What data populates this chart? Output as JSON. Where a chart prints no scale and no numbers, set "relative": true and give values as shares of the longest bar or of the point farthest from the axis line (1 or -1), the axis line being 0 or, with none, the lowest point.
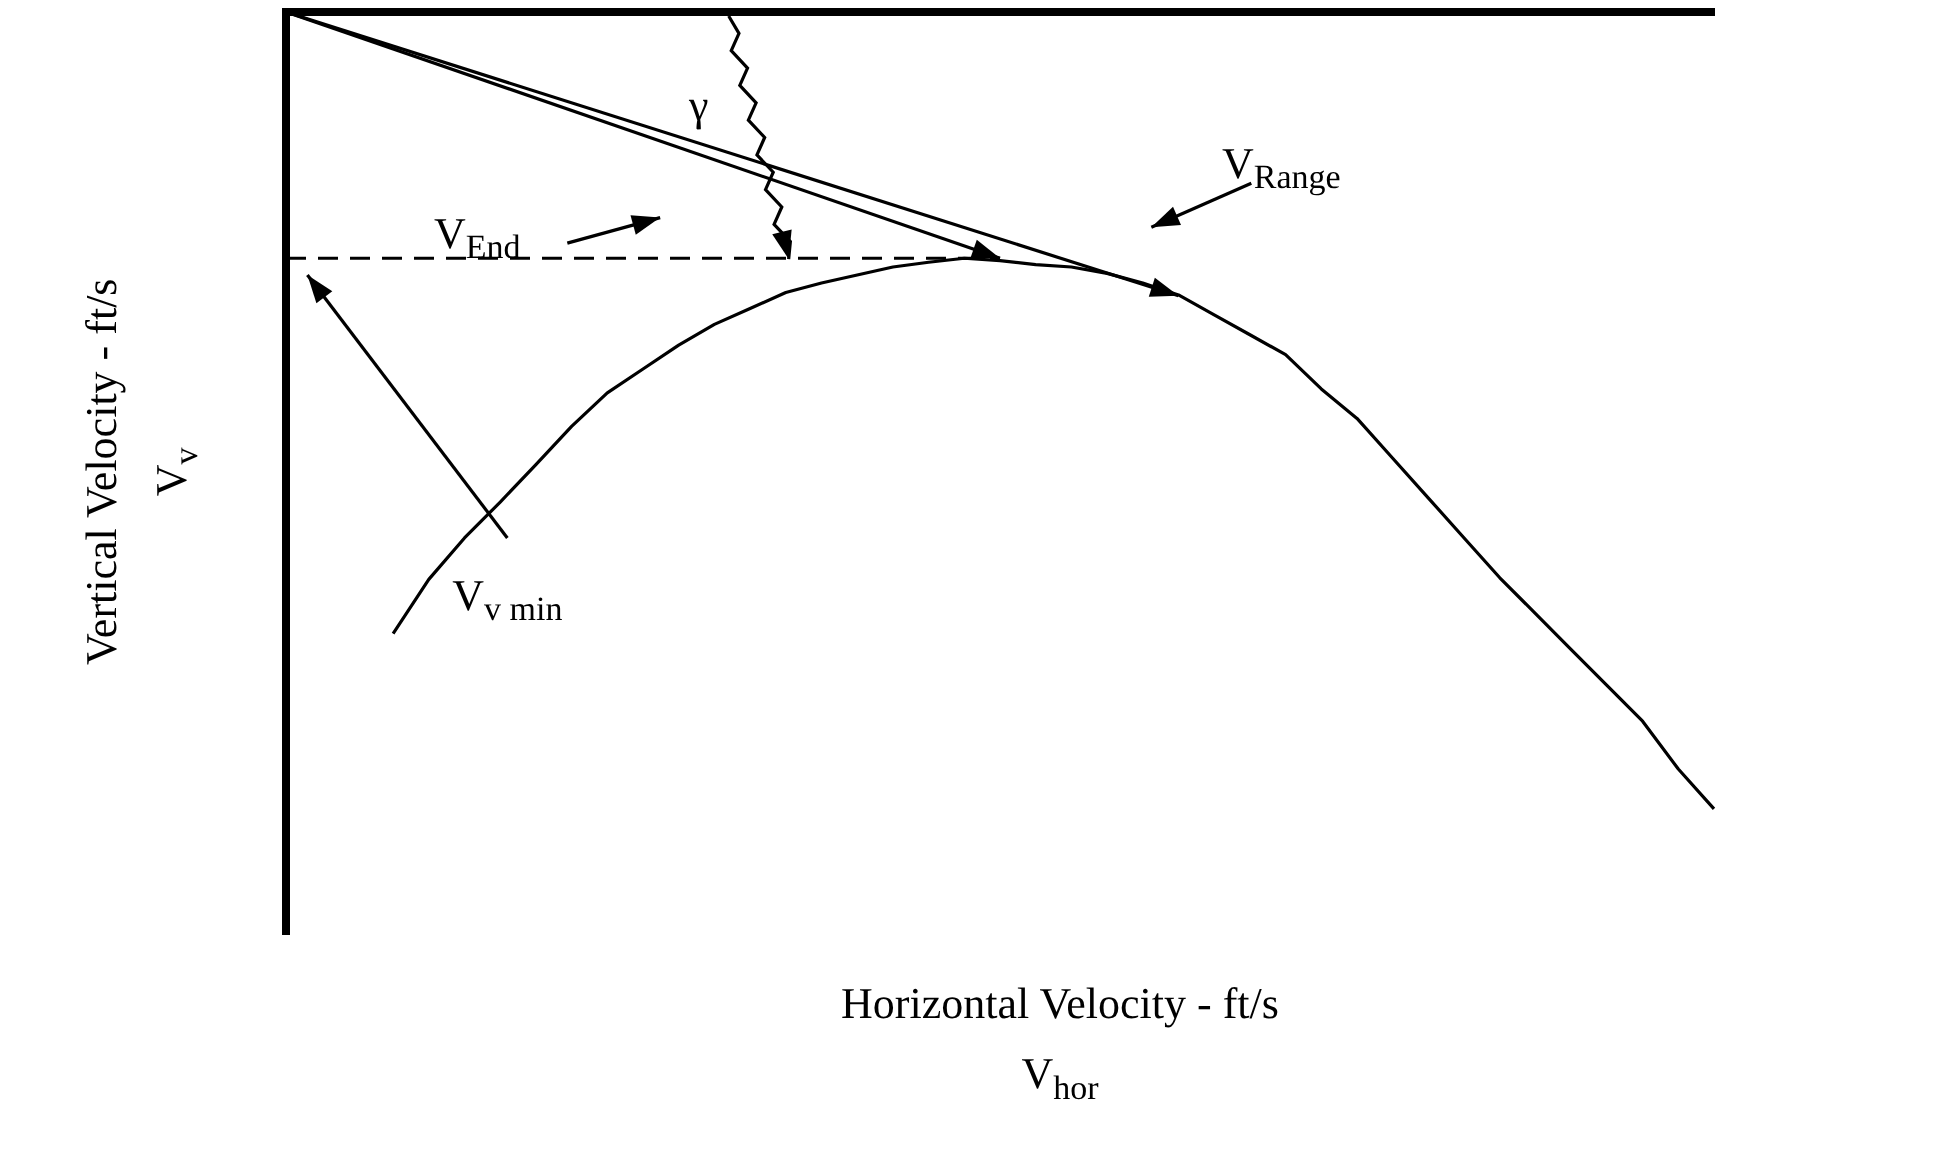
{
  "chart_data": {
    "type": "line",
    "relative": true,
    "legend": false,
    "marker": "none",
    "xlabel": "Horizontal Velocity - ft/s\nV$_{hor}$",
    "ylabel": "Vertical Velocity - ft/s\nV$_{v}$",
    "categories": [
      null,
      null,
      null,
      null,
      null,
      null,
      null,
      null,
      null,
      null,
      null,
      null,
      null,
      null,
      null,
      null,
      null,
      null,
      null,
      null,
      null,
      null,
      null,
      null,
      null,
      null,
      null,
      null,
      null,
      null,
      null,
      null,
      null,
      null,
      null,
      null,
      null,
      null,
      null,
      null,
      null
    ],
    "series": [
      {
        "color": "#000000",
        "line_style": "solid",
        "values": [
          null,
          null,
          null,
          -0.78,
          -0.712,
          -0.66,
          -0.615,
          -0.568,
          -0.52,
          -0.478,
          -0.448,
          -0.418,
          -0.392,
          -0.372,
          -0.352,
          -0.34,
          -0.33,
          -0.32,
          -0.314,
          -0.309,
          -0.312,
          -0.317,
          -0.32,
          -0.328,
          -0.34,
          -0.355,
          -0.38,
          -0.405,
          -0.43,
          -0.473,
          -0.51,
          -0.56,
          -0.61,
          -0.66,
          -0.71,
          -0.755,
          -0.8,
          -0.845,
          -0.89,
          -0.95,
          -1
        ]
      },
      {
        "color": "#000000",
        "line_style": "dashed",
        "values": [
          -0.309,
          null,
          null,
          null,
          null,
          null,
          null,
          null,
          null,
          null,
          null,
          null,
          null,
          null,
          null,
          null,
          null,
          null,
          null,
          null,
          -0.309,
          null,
          null,
          null,
          null,
          null,
          null,
          null,
          null,
          null,
          null,
          null,
          null,
          null,
          null,
          null,
          null,
          null,
          null,
          null,
          null
        ]
      }
    ],
    "annotations": [
      "γ",
      "V$_{End}$",
      "V$_{Range}$",
      "V$_{v min}$"
    ]
  }
}
